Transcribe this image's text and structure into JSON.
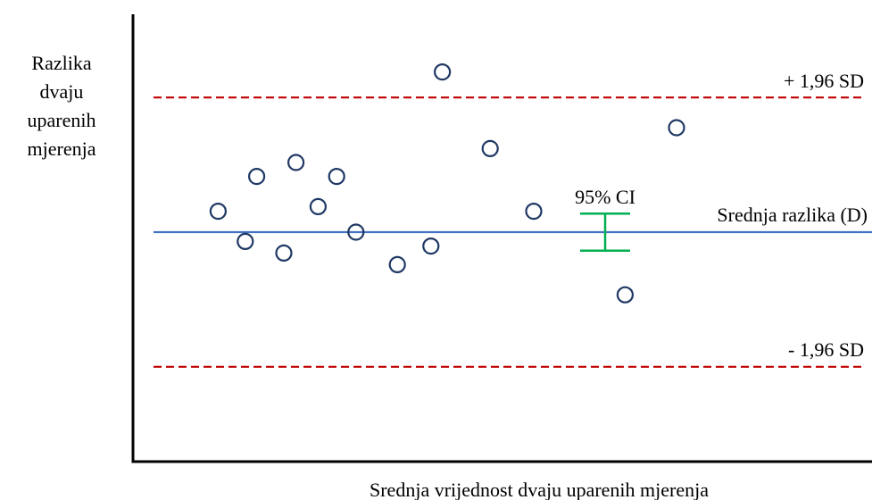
{
  "chart_data": {
    "type": "scatter",
    "title": "",
    "xlabel": "Srednja vrijednost dvaju uparenih mjerenja",
    "ylabel_lines": [
      "Razlika",
      "dvaju",
      "uparenih",
      "mjerenja"
    ],
    "grid": false,
    "legend": "none",
    "xlim": [
      0,
      100
    ],
    "ylim": [
      -10,
      10
    ],
    "points": [
      {
        "x": 9.3,
        "y": 0.9
      },
      {
        "x": 13.1,
        "y": -0.4
      },
      {
        "x": 14.7,
        "y": 2.4
      },
      {
        "x": 18.5,
        "y": -0.9
      },
      {
        "x": 20.2,
        "y": 3.0
      },
      {
        "x": 23.3,
        "y": 1.1
      },
      {
        "x": 25.9,
        "y": 2.4
      },
      {
        "x": 28.6,
        "y": 0.0
      },
      {
        "x": 34.4,
        "y": -1.4
      },
      {
        "x": 39.1,
        "y": -0.6
      },
      {
        "x": 40.7,
        "y": 6.9
      },
      {
        "x": 47.4,
        "y": 3.6
      },
      {
        "x": 53.5,
        "y": 0.9
      },
      {
        "x": 66.3,
        "y": -2.7
      },
      {
        "x": 73.5,
        "y": 4.5
      }
    ],
    "mean_line": {
      "y": 0,
      "label": "Srednja razlika (D)",
      "color": "#4472c4"
    },
    "upper_limit": {
      "y": 5.8,
      "label": "+ 1,96 SD",
      "color": "#c00000"
    },
    "lower_limit": {
      "y": -5.8,
      "label": "- 1,96 SD",
      "color": "#c00000"
    },
    "ci": {
      "x": 63.5,
      "low": -0.8,
      "high": 0.8,
      "label": "95% CI",
      "color": "#00b050"
    },
    "colors": {
      "points": "#1f3864",
      "axis": "#000000"
    }
  }
}
